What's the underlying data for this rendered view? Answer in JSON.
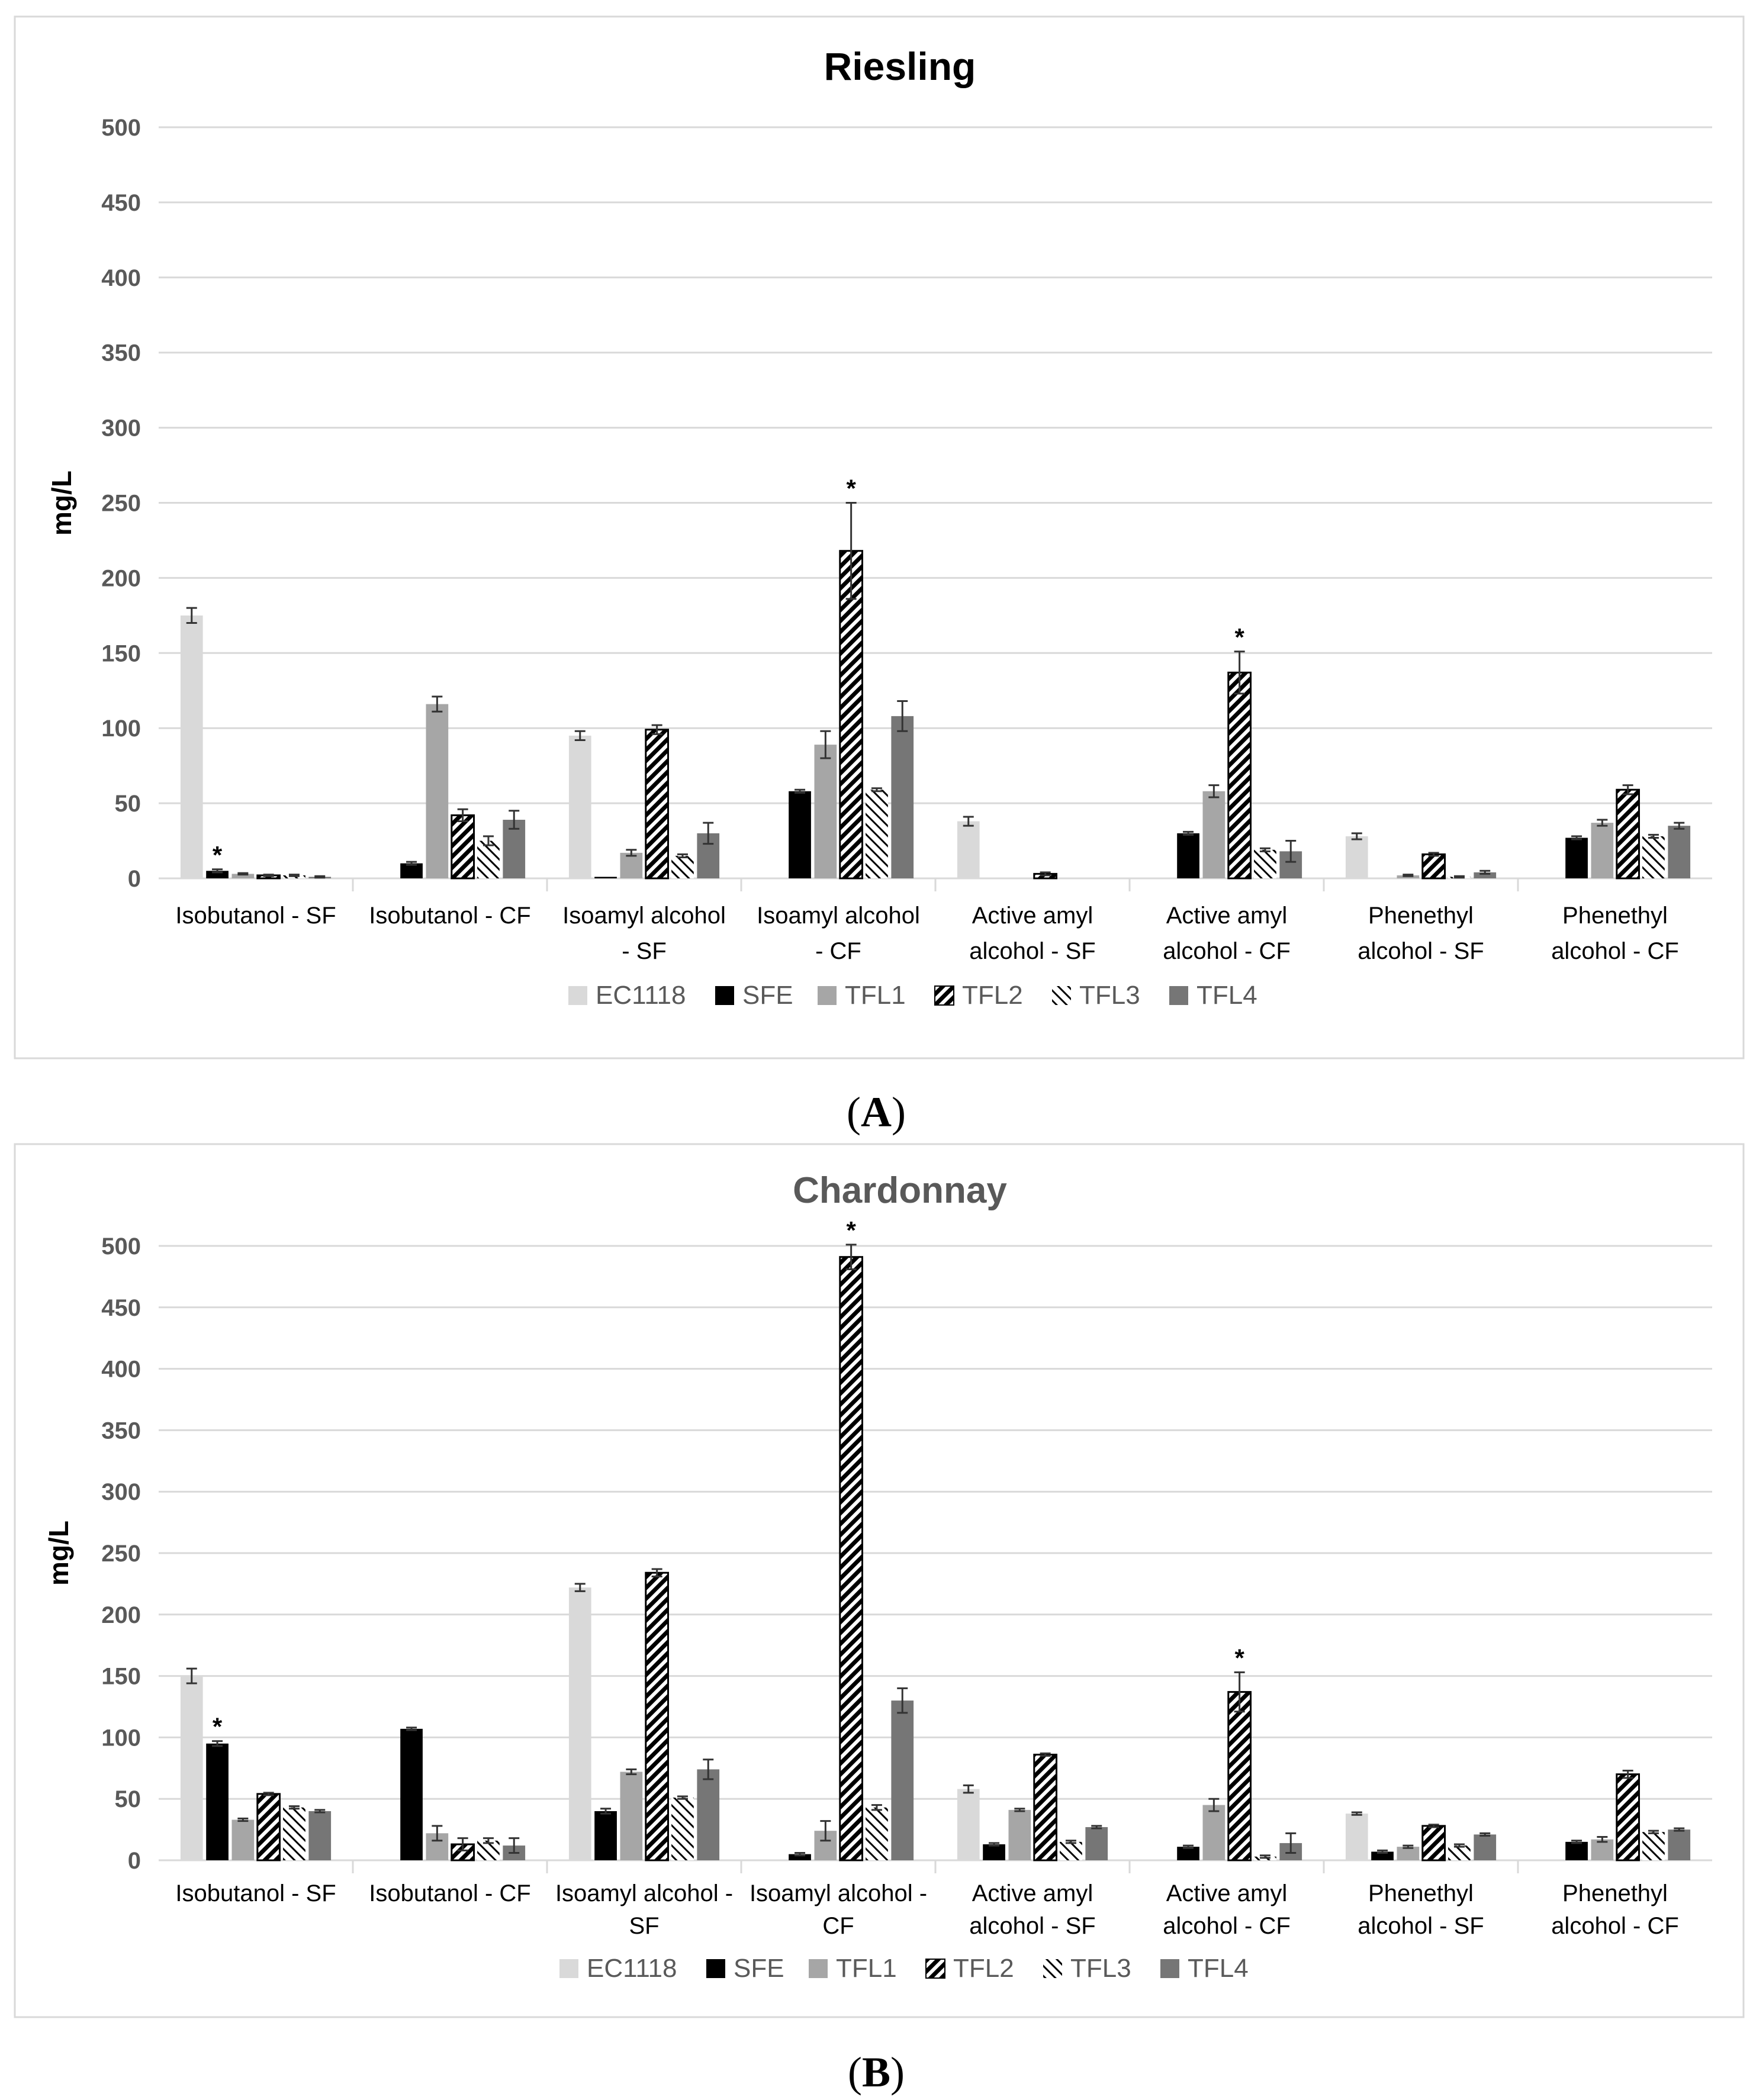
{
  "chart_data": [
    {
      "type": "bar",
      "title": "Riesling",
      "panel_label": "(A)",
      "panel_label_parts": [
        "(",
        "A",
        ")"
      ],
      "ylabel": "mg/L",
      "xlabel": "",
      "ylim": [
        0,
        500
      ],
      "yticks": [
        "0",
        "50",
        "100",
        "150",
        "200",
        "250",
        "300",
        "350",
        "400",
        "450",
        "500"
      ],
      "grid": true,
      "legend_position": "bottom",
      "categories": [
        [
          "Isobutanol - SF"
        ],
        [
          "Isobutanol - CF"
        ],
        [
          "Isoamyl alcohol",
          "- SF"
        ],
        [
          "Isoamyl alcohol",
          "- CF"
        ],
        [
          "Active amyl",
          "alcohol - SF"
        ],
        [
          "Active amyl",
          "alcohol - CF"
        ],
        [
          "Phenethyl",
          "alcohol - SF"
        ],
        [
          "Phenethyl",
          "alcohol - CF"
        ]
      ],
      "series": [
        {
          "name": "EC1118",
          "values": [
            175,
            0,
            95,
            0,
            38,
            0,
            28,
            0
          ],
          "errors": [
            5,
            0,
            3,
            0,
            3,
            0,
            2,
            0
          ]
        },
        {
          "name": "SFE",
          "values": [
            5,
            10,
            1,
            58,
            0,
            30,
            0,
            27
          ],
          "errors": [
            1,
            1,
            0,
            1,
            0,
            1,
            0,
            1
          ]
        },
        {
          "name": "TFL1",
          "values": [
            3,
            116,
            17,
            89,
            0,
            58,
            2,
            37
          ],
          "errors": [
            0.5,
            5,
            2,
            9,
            0,
            4,
            0.5,
            2
          ]
        },
        {
          "name": "TFL2",
          "values": [
            2,
            42,
            99,
            218,
            3,
            137,
            16,
            59
          ],
          "errors": [
            0.5,
            4,
            3,
            32,
            1,
            14,
            1,
            3
          ]
        },
        {
          "name": "TFL3",
          "values": [
            2,
            25,
            15,
            59,
            0,
            19,
            1,
            28
          ],
          "errors": [
            0.5,
            3,
            1,
            1,
            0,
            1,
            0.5,
            1
          ]
        },
        {
          "name": "TFL4",
          "values": [
            1,
            39,
            30,
            108,
            0,
            18,
            4,
            35
          ],
          "errors": [
            0.5,
            6,
            7,
            10,
            0,
            7,
            1,
            2
          ]
        }
      ],
      "annotations": [
        {
          "text": "*",
          "category_index": 0,
          "series": "SFE"
        },
        {
          "text": "*",
          "category_index": 3,
          "series": "TFL2"
        },
        {
          "text": "*",
          "category_index": 5,
          "series": "TFL2"
        }
      ]
    },
    {
      "type": "bar",
      "title": "Chardonnay",
      "panel_label": "(B)",
      "panel_label_parts": [
        "(",
        "B",
        ")"
      ],
      "ylabel": "mg/L",
      "xlabel": "",
      "ylim": [
        0,
        500
      ],
      "yticks": [
        "0",
        "50",
        "100",
        "150",
        "200",
        "250",
        "300",
        "350",
        "400",
        "450",
        "500"
      ],
      "grid": true,
      "legend_position": "bottom",
      "categories": [
        [
          "Isobutanol - SF"
        ],
        [
          "Isobutanol - CF"
        ],
        [
          "Isoamyl alcohol -",
          "SF"
        ],
        [
          "Isoamyl alcohol -",
          "CF"
        ],
        [
          "Active amyl",
          "alcohol - SF"
        ],
        [
          "Active amyl",
          "alcohol - CF"
        ],
        [
          "Phenethyl",
          "alcohol - SF"
        ],
        [
          "Phenethyl",
          "alcohol - CF"
        ]
      ],
      "series": [
        {
          "name": "EC1118",
          "values": [
            150,
            0,
            222,
            0,
            58,
            0,
            38,
            0
          ],
          "errors": [
            6,
            0,
            3,
            0,
            3,
            0,
            1,
            0
          ]
        },
        {
          "name": "SFE",
          "values": [
            95,
            107,
            40,
            5,
            13,
            11,
            7,
            15
          ],
          "errors": [
            2,
            1,
            2,
            1,
            1,
            1,
            1,
            1
          ]
        },
        {
          "name": "TFL1",
          "values": [
            33,
            22,
            72,
            24,
            41,
            45,
            11,
            17
          ],
          "errors": [
            1,
            6,
            2,
            8,
            1,
            5,
            1,
            2
          ]
        },
        {
          "name": "TFL2",
          "values": [
            54,
            13,
            234,
            491,
            86,
            137,
            28,
            70
          ],
          "errors": [
            1,
            5,
            3,
            10,
            1,
            16,
            1,
            3
          ]
        },
        {
          "name": "TFL3",
          "values": [
            43,
            16,
            51,
            43,
            15,
            3,
            12,
            23
          ],
          "errors": [
            1,
            2,
            1,
            2,
            1,
            1,
            1,
            1
          ]
        },
        {
          "name": "TFL4",
          "values": [
            40,
            12,
            74,
            130,
            27,
            14,
            21,
            25
          ],
          "errors": [
            1,
            6,
            8,
            10,
            1,
            8,
            1,
            1
          ]
        }
      ],
      "annotations": [
        {
          "text": "*",
          "category_index": 0,
          "series": "SFE"
        },
        {
          "text": "*",
          "category_index": 3,
          "series": "TFL2"
        },
        {
          "text": "*",
          "category_index": 5,
          "series": "TFL2"
        }
      ]
    }
  ],
  "colors": {
    "EC1118": "#d9d9d9",
    "SFE": "#000000",
    "TFL1": "#a6a6a6",
    "TFL2": "#000000",
    "TFL3": "#000000",
    "TFL4": "#767676",
    "grid": "#d9d9d9",
    "axis_text": "#595959",
    "legend_text": "#595959",
    "title_riesling": "#000000",
    "title_chardonnay": "#595959",
    "frame": "#d9d9d9"
  }
}
